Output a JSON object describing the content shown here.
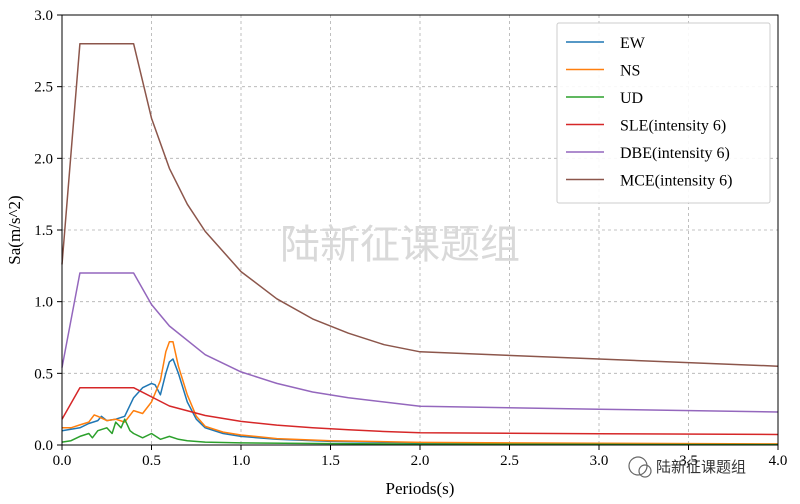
{
  "chart_data": {
    "type": "line",
    "title": "",
    "xlabel": "Periods(s)",
    "ylabel": "Sa(m/s^2)",
    "xlim": [
      0,
      4.0
    ],
    "ylim": [
      0,
      3.0
    ],
    "xticks": [
      "0.0",
      "0.5",
      "1.0",
      "1.5",
      "2.0",
      "2.5",
      "3.0",
      "3.5",
      "4.0"
    ],
    "yticks": [
      "0.0",
      "0.5",
      "1.0",
      "1.5",
      "2.0",
      "2.5",
      "3.0"
    ],
    "grid": true,
    "legend_position": "top-right",
    "series": [
      {
        "name": "EW",
        "color": "#1f77b4",
        "points": [
          [
            0,
            0.1
          ],
          [
            0.05,
            0.11
          ],
          [
            0.1,
            0.12
          ],
          [
            0.15,
            0.15
          ],
          [
            0.2,
            0.17
          ],
          [
            0.22,
            0.2
          ],
          [
            0.25,
            0.17
          ],
          [
            0.3,
            0.18
          ],
          [
            0.35,
            0.2
          ],
          [
            0.4,
            0.33
          ],
          [
            0.45,
            0.4
          ],
          [
            0.5,
            0.43
          ],
          [
            0.52,
            0.42
          ],
          [
            0.55,
            0.35
          ],
          [
            0.58,
            0.5
          ],
          [
            0.6,
            0.58
          ],
          [
            0.62,
            0.6
          ],
          [
            0.65,
            0.5
          ],
          [
            0.7,
            0.3
          ],
          [
            0.75,
            0.18
          ],
          [
            0.8,
            0.12
          ],
          [
            0.9,
            0.08
          ],
          [
            1.0,
            0.06
          ],
          [
            1.2,
            0.04
          ],
          [
            1.5,
            0.025
          ],
          [
            2.0,
            0.015
          ],
          [
            3.0,
            0.01
          ],
          [
            4.0,
            0.005
          ]
        ]
      },
      {
        "name": "NS",
        "color": "#ff7f0e",
        "points": [
          [
            0,
            0.12
          ],
          [
            0.05,
            0.12
          ],
          [
            0.1,
            0.14
          ],
          [
            0.15,
            0.16
          ],
          [
            0.18,
            0.21
          ],
          [
            0.2,
            0.2
          ],
          [
            0.25,
            0.17
          ],
          [
            0.3,
            0.18
          ],
          [
            0.35,
            0.16
          ],
          [
            0.4,
            0.24
          ],
          [
            0.45,
            0.22
          ],
          [
            0.5,
            0.3
          ],
          [
            0.55,
            0.45
          ],
          [
            0.58,
            0.65
          ],
          [
            0.6,
            0.72
          ],
          [
            0.62,
            0.72
          ],
          [
            0.65,
            0.55
          ],
          [
            0.7,
            0.35
          ],
          [
            0.75,
            0.2
          ],
          [
            0.8,
            0.13
          ],
          [
            0.9,
            0.09
          ],
          [
            1.0,
            0.07
          ],
          [
            1.2,
            0.045
          ],
          [
            1.5,
            0.03
          ],
          [
            2.0,
            0.018
          ],
          [
            3.0,
            0.012
          ],
          [
            4.0,
            0.008
          ]
        ]
      },
      {
        "name": "UD",
        "color": "#2ca02c",
        "points": [
          [
            0,
            0.02
          ],
          [
            0.05,
            0.03
          ],
          [
            0.1,
            0.06
          ],
          [
            0.15,
            0.08
          ],
          [
            0.17,
            0.05
          ],
          [
            0.2,
            0.1
          ],
          [
            0.25,
            0.12
          ],
          [
            0.28,
            0.08
          ],
          [
            0.3,
            0.16
          ],
          [
            0.33,
            0.12
          ],
          [
            0.35,
            0.18
          ],
          [
            0.38,
            0.1
          ],
          [
            0.4,
            0.08
          ],
          [
            0.45,
            0.05
          ],
          [
            0.5,
            0.08
          ],
          [
            0.55,
            0.04
          ],
          [
            0.6,
            0.06
          ],
          [
            0.65,
            0.04
          ],
          [
            0.7,
            0.03
          ],
          [
            0.8,
            0.02
          ],
          [
            1.0,
            0.015
          ],
          [
            1.5,
            0.01
          ],
          [
            2.0,
            0.006
          ],
          [
            3.0,
            0.004
          ],
          [
            4.0,
            0.003
          ]
        ]
      },
      {
        "name": "SLE(intensity 6)",
        "color": "#d62728",
        "points": [
          [
            0,
            0.18
          ],
          [
            0.1,
            0.4
          ],
          [
            0.4,
            0.4
          ],
          [
            0.6,
            0.272
          ],
          [
            0.8,
            0.206
          ],
          [
            1.0,
            0.165
          ],
          [
            1.2,
            0.139
          ],
          [
            1.4,
            0.12
          ],
          [
            1.6,
            0.106
          ],
          [
            1.8,
            0.094
          ],
          [
            2.0,
            0.085
          ],
          [
            3.0,
            0.079
          ],
          [
            4.0,
            0.073
          ]
        ]
      },
      {
        "name": "DBE(intensity 6)",
        "color": "#9467bd",
        "points": [
          [
            0,
            0.54
          ],
          [
            0.1,
            1.2
          ],
          [
            0.4,
            1.2
          ],
          [
            0.5,
            0.98
          ],
          [
            0.6,
            0.83
          ],
          [
            0.8,
            0.63
          ],
          [
            1.0,
            0.51
          ],
          [
            1.2,
            0.43
          ],
          [
            1.4,
            0.37
          ],
          [
            1.6,
            0.33
          ],
          [
            1.8,
            0.3
          ],
          [
            2.0,
            0.27
          ],
          [
            3.0,
            0.25
          ],
          [
            4.0,
            0.23
          ]
        ]
      },
      {
        "name": "MCE(intensity 6)",
        "color": "#8c564b",
        "points": [
          [
            0,
            1.26
          ],
          [
            0.1,
            2.8
          ],
          [
            0.4,
            2.8
          ],
          [
            0.5,
            2.28
          ],
          [
            0.6,
            1.93
          ],
          [
            0.7,
            1.68
          ],
          [
            0.8,
            1.49
          ],
          [
            1.0,
            1.21
          ],
          [
            1.2,
            1.02
          ],
          [
            1.4,
            0.88
          ],
          [
            1.6,
            0.78
          ],
          [
            1.8,
            0.7
          ],
          [
            2.0,
            0.65
          ],
          [
            3.0,
            0.6
          ],
          [
            4.0,
            0.55
          ]
        ]
      }
    ]
  },
  "watermark": {
    "center_text": "陆新征课题组",
    "corner_text": "陆新征课题组"
  }
}
